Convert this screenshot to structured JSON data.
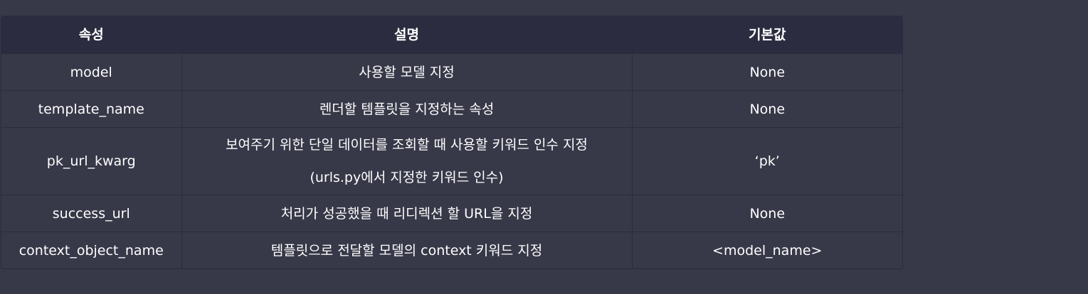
{
  "table": {
    "headers": [
      "속성",
      "설명",
      "기본값"
    ],
    "rows": [
      {
        "attr": "model",
        "desc": [
          "사용할 모델 지정"
        ],
        "default": "None"
      },
      {
        "attr": "template_name",
        "desc": [
          "렌더할 템플릿을 지정하는 속성"
        ],
        "default": "None"
      },
      {
        "attr": "pk_url_kwarg",
        "desc": [
          "보여주기 위한 단일 데이터를 조회할 때 사용할 키워드 인수 지정",
          "(urls.py에서 지정한 키워드 인수)"
        ],
        "default": "‘pk’"
      },
      {
        "attr": "success_url",
        "desc": [
          "처리가 성공했을 때 리디렉션 할 URL을 지정"
        ],
        "default": "None"
      },
      {
        "attr": "context_object_name",
        "desc": [
          "템플릿으로 전달할 모델의 context 키워드 지정"
        ],
        "default": "<model_name>"
      }
    ]
  }
}
